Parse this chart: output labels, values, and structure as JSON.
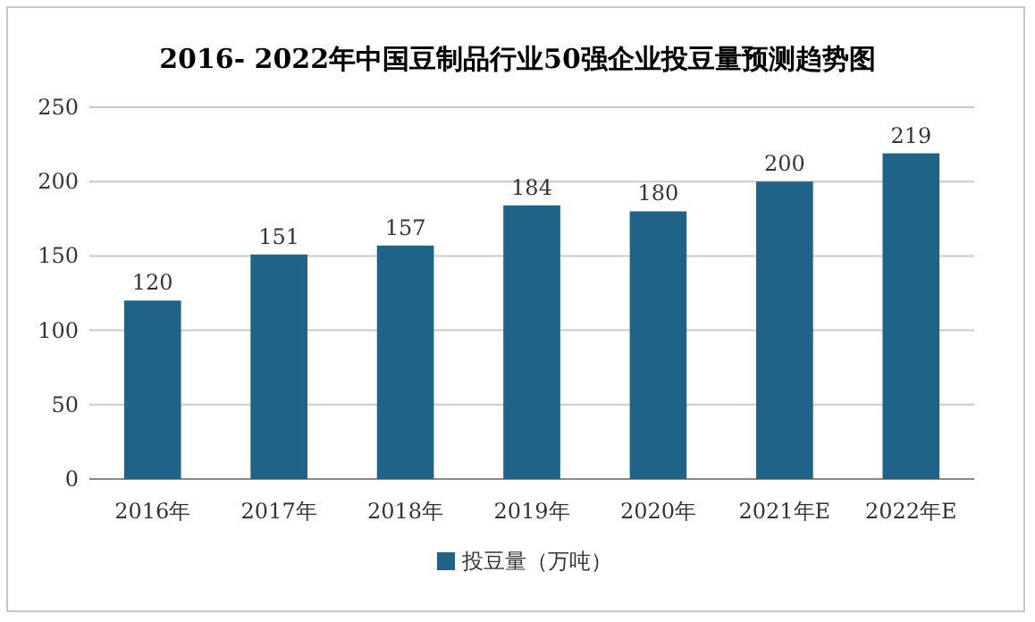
{
  "chart_data": {
    "type": "bar",
    "title": "2016- 2022年中国豆制品行业50强企业投豆量预测趋势图",
    "categories": [
      "2016年",
      "2017年",
      "2018年",
      "2019年",
      "2020年",
      "2021年E",
      "2022年E"
    ],
    "series": [
      {
        "name": "投豆量（万吨）",
        "color": "#1f6388",
        "values": [
          120,
          151,
          157,
          184,
          180,
          200,
          219
        ]
      }
    ],
    "ylim": [
      0,
      250
    ],
    "yticks": [
      0,
      50,
      100,
      150,
      200,
      250
    ],
    "grid": "y",
    "legend": "bottom",
    "data_labels": true
  }
}
